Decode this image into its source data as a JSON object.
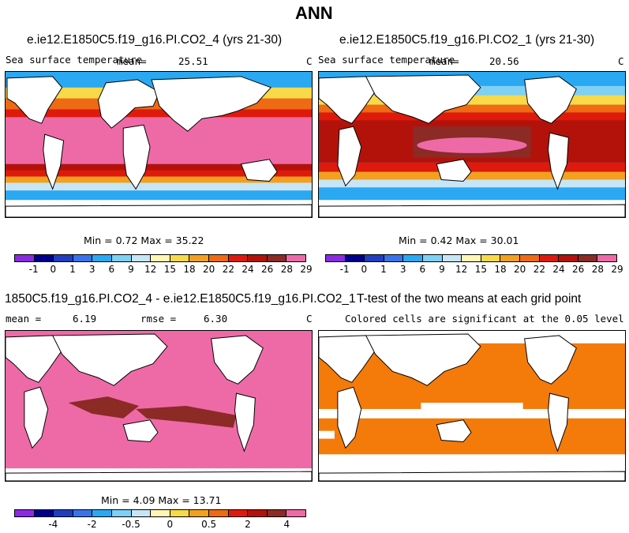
{
  "figure_title": "ANN",
  "panels": [
    {
      "title": "e.ie12.E1850C5.f19_g16.PI.CO2_4 (yrs 21-30)",
      "variable": "Sea surface temperature",
      "mean_label": "mean=",
      "mean_value": "25.51",
      "units": "C",
      "stats": "Min =   0.72 Max =  35.22"
    },
    {
      "title": "e.ie12.E1850C5.f19_g16.PI.CO2_1 (yrs 21-30)",
      "variable": "Sea surface temperature",
      "mean_label": "mean=",
      "mean_value": "20.56",
      "units": "C",
      "stats": "Min =   0.42 Max =  30.01"
    },
    {
      "title": "1850C5.f19_g16.PI.CO2_4 - e.ie12.E1850C5.f19_g16.PI.CO2_1",
      "mean_label": "mean =",
      "mean_value": "6.19",
      "rmse_label": "rmse =",
      "rmse_value": "6.30",
      "units": "C",
      "stats": "Min =   4.09 Max =  13.71"
    },
    {
      "title": "T-test of the two means at each grid point",
      "subtitle": "Colored cells are significant at the 0.05 level"
    }
  ],
  "colorbar_top": {
    "colors": [
      "#8a2be2",
      "#00008b",
      "#1f3fbf",
      "#3a73e8",
      "#2aa8f2",
      "#7fd0f5",
      "#c6e6f7",
      "#fff5b5",
      "#f7d94a",
      "#f2a020",
      "#ee6a14",
      "#de1a0c",
      "#b3120b",
      "#8c2a26",
      "#ee6aa7"
    ],
    "labels": [
      "-1",
      "0",
      "1",
      "3",
      "6",
      "9",
      "12",
      "15",
      "18",
      "20",
      "22",
      "24",
      "26",
      "28",
      "29"
    ]
  },
  "colorbar_diff": {
    "colors": [
      "#8a2be2",
      "#00008b",
      "#1f3fbf",
      "#3a73e8",
      "#2aa8f2",
      "#7fd0f5",
      "#c6e6f7",
      "#fff5b5",
      "#f7d94a",
      "#f2a020",
      "#ee6a14",
      "#de1a0c",
      "#b3120b",
      "#8c2a26",
      "#ee6aa7"
    ],
    "labels": [
      "-4",
      "-2",
      "-0.5",
      "0",
      "0.5",
      "2",
      "4"
    ]
  },
  "field_colors": {
    "warm_pool": "#ee6aa7",
    "hot_core": "#8c2a26",
    "significant": "#f47a0a",
    "land": "#ffffff"
  }
}
